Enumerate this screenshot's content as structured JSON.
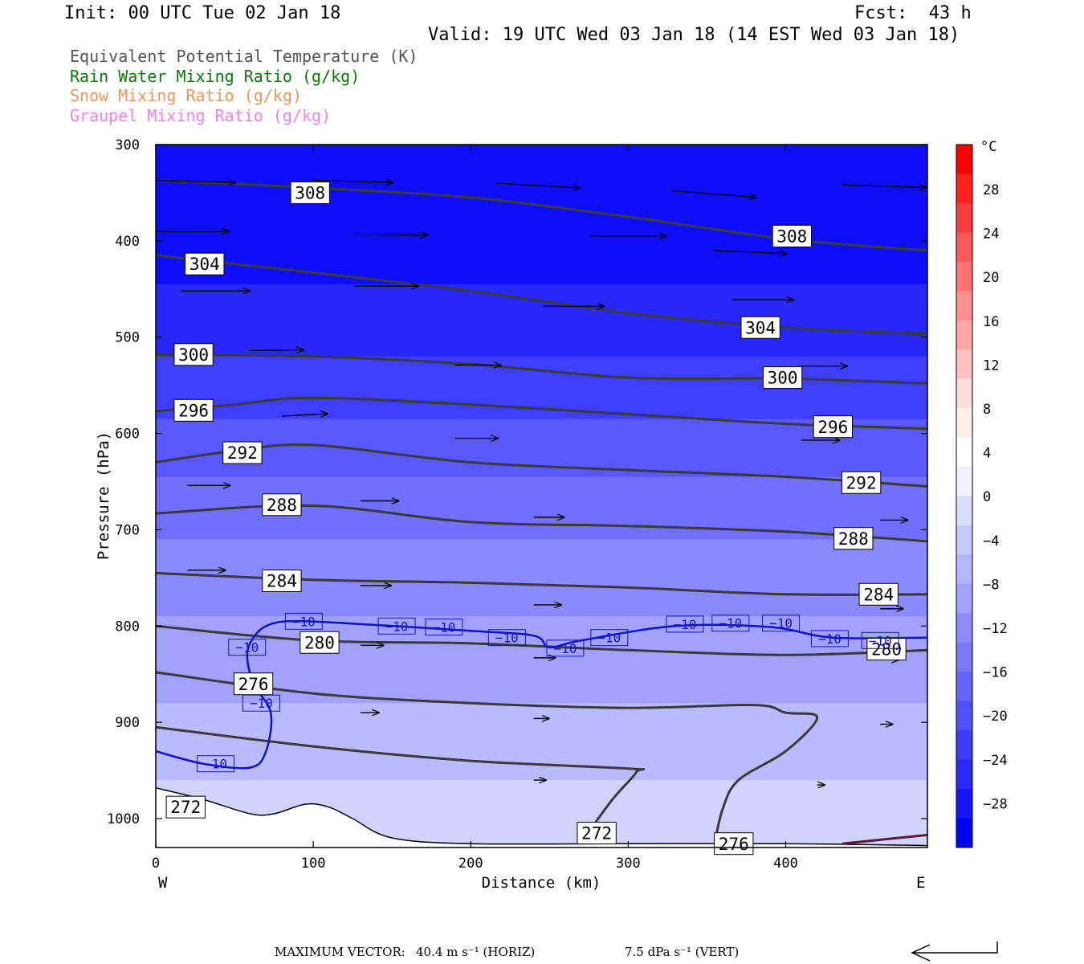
{
  "header": {
    "init": "Init: 00 UTC Tue 02 Jan 18",
    "fcst": "Fcst:  43 h",
    "valid": "Valid: 19 UTC Wed 03 Jan 18 (14 EST Wed 03 Jan 18)"
  },
  "fields": [
    {
      "label": "Equivalent Potential Temperature (K)",
      "color": "#555555"
    },
    {
      "label": "Rain Water Mixing Ratio (g/kg)",
      "color": "#0a7a0a"
    },
    {
      "label": "Snow Mixing Ratio (g/kg)",
      "color": "#f0955a"
    },
    {
      "label": "Graupel Mixing Ratio (g/kg)",
      "color": "#ee82ee"
    }
  ],
  "footer": {
    "max_vector_label": "MAXIMUM VECTOR:",
    "horiz": "40.4 m s⁻¹ (HORIZ)",
    "vert": "7.5 dPa s⁻¹ (VERT)"
  },
  "chart_data": {
    "type": "cross-section",
    "xlabel": "Distance (km)",
    "ylabel": "Pressure (hPa)",
    "xlim": [
      0,
      490
    ],
    "ylim": [
      300,
      1030
    ],
    "y_scale": "linear",
    "x_ticks": [
      0,
      100,
      200,
      300,
      400
    ],
    "y_ticks": [
      300,
      400,
      500,
      600,
      700,
      800,
      900,
      1000
    ],
    "x_end_labels": {
      "left": "W",
      "right": "E"
    },
    "colorbar": {
      "unit": "°C",
      "labels": [
        "28",
        "24",
        "20",
        "16",
        "12",
        "8",
        "4",
        "0",
        "-4",
        "-8",
        "-12",
        "-16",
        "-20",
        "-24",
        "-28"
      ],
      "colors": [
        "#ff0000",
        "#ff2020",
        "#ff3c3c",
        "#ff5a5a",
        "#ff7474",
        "#ff8e8e",
        "#ffa8a8",
        "#ffc2c2",
        "#ffdcdc",
        "#fff0f0",
        "#ffffff",
        "#f0f0ff",
        "#dcdcff",
        "#c8c8ff",
        "#b4b4ff",
        "#a0a0ff",
        "#8c8cff",
        "#7878ff",
        "#6464ff",
        "#5050ff",
        "#3c3cff",
        "#2828ff",
        "#1414ff",
        "#0000ff"
      ]
    },
    "temperature_fill_bands": [
      {
        "p_top": 300,
        "p_bot": 445,
        "color": "#0d0dfa"
      },
      {
        "p_top": 445,
        "p_bot": 520,
        "color": "#2828fa"
      },
      {
        "p_top": 520,
        "p_bot": 585,
        "color": "#3e3efb"
      },
      {
        "p_top": 585,
        "p_bot": 645,
        "color": "#5858fc"
      },
      {
        "p_top": 645,
        "p_bot": 710,
        "color": "#7070fc"
      },
      {
        "p_top": 710,
        "p_bot": 790,
        "color": "#8a8afd"
      },
      {
        "p_top": 790,
        "p_bot": 880,
        "color": "#a2a2fe"
      },
      {
        "p_top": 880,
        "p_bot": 960,
        "color": "#babafe"
      },
      {
        "p_top": 960,
        "p_bot": 1030,
        "color": "#d2d2fe"
      }
    ],
    "theta_e_contours": [
      {
        "label": "308",
        "points": [
          [
            0,
            337
          ],
          [
            100,
            345
          ],
          [
            200,
            355
          ],
          [
            300,
            375
          ],
          [
            400,
            398
          ],
          [
            490,
            410
          ]
        ],
        "label_at": [
          [
            98,
            350
          ],
          [
            404,
            395
          ]
        ]
      },
      {
        "label": "304",
        "points": [
          [
            0,
            415
          ],
          [
            100,
            433
          ],
          [
            200,
            452
          ],
          [
            300,
            475
          ],
          [
            400,
            490
          ],
          [
            490,
            497
          ]
        ],
        "label_at": [
          [
            31,
            424
          ],
          [
            384,
            490
          ]
        ]
      },
      {
        "label": "300",
        "points": [
          [
            0,
            518
          ],
          [
            100,
            520
          ],
          [
            200,
            528
          ],
          [
            300,
            542
          ],
          [
            400,
            543
          ],
          [
            490,
            548
          ]
        ],
        "label_at": [
          [
            24,
            518
          ],
          [
            398,
            542
          ]
        ]
      },
      {
        "label": "296",
        "points": [
          [
            0,
            577
          ],
          [
            50,
            570
          ],
          [
            100,
            563
          ],
          [
            200,
            570
          ],
          [
            300,
            580
          ],
          [
            400,
            590
          ],
          [
            490,
            595
          ]
        ],
        "label_at": [
          [
            24,
            576
          ],
          [
            430,
            593
          ]
        ]
      },
      {
        "label": "292",
        "points": [
          [
            0,
            630
          ],
          [
            50,
            618
          ],
          [
            100,
            612
          ],
          [
            200,
            630
          ],
          [
            300,
            638
          ],
          [
            400,
            645
          ],
          [
            490,
            655
          ]
        ],
        "label_at": [
          [
            55,
            620
          ],
          [
            448,
            651
          ]
        ]
      },
      {
        "label": "288",
        "points": [
          [
            0,
            683
          ],
          [
            100,
            675
          ],
          [
            200,
            692
          ],
          [
            300,
            696
          ],
          [
            400,
            702
          ],
          [
            490,
            712
          ]
        ],
        "label_at": [
          [
            80,
            674
          ],
          [
            443,
            709
          ]
        ]
      },
      {
        "label": "284",
        "points": [
          [
            0,
            745
          ],
          [
            100,
            752
          ],
          [
            200,
            755
          ],
          [
            300,
            760
          ],
          [
            400,
            767
          ],
          [
            490,
            767
          ]
        ],
        "label_at": [
          [
            80,
            753
          ],
          [
            459,
            767
          ]
        ]
      },
      {
        "label": "280",
        "points": [
          [
            0,
            800
          ],
          [
            100,
            815
          ],
          [
            200,
            818
          ],
          [
            300,
            825
          ],
          [
            400,
            830
          ],
          [
            490,
            825
          ]
        ],
        "label_at": [
          [
            104,
            817
          ],
          [
            464,
            824
          ]
        ]
      },
      {
        "label": "276",
        "points": [
          [
            0,
            848
          ],
          [
            100,
            870
          ],
          [
            200,
            880
          ],
          [
            300,
            885
          ],
          [
            380,
            882
          ],
          [
            400,
            890
          ],
          [
            420,
            895
          ],
          [
            400,
            930
          ],
          [
            370,
            960
          ],
          [
            360,
            990
          ],
          [
            355,
            1025
          ]
        ],
        "label_at": [
          [
            62,
            860
          ],
          [
            367,
            1026
          ]
        ]
      },
      {
        "label": "272",
        "points": [
          [
            0,
            905
          ],
          [
            100,
            925
          ],
          [
            200,
            940
          ],
          [
            300,
            948
          ],
          [
            305,
            952
          ],
          [
            290,
            980
          ],
          [
            270,
            1025
          ]
        ],
        "label_at": [
          [
            19,
            988
          ],
          [
            280,
            1015
          ]
        ]
      }
    ],
    "temperature_contour_minus10": {
      "label": "-10",
      "points": [
        [
          0,
          930
        ],
        [
          30,
          943
        ],
        [
          60,
          947
        ],
        [
          70,
          930
        ],
        [
          73,
          890
        ],
        [
          62,
          860
        ],
        [
          58,
          830
        ],
        [
          62,
          812
        ],
        [
          70,
          800
        ],
        [
          85,
          795
        ],
        [
          120,
          797
        ],
        [
          200,
          805
        ],
        [
          240,
          810
        ],
        [
          250,
          822
        ],
        [
          270,
          815
        ],
        [
          330,
          800
        ],
        [
          390,
          801
        ],
        [
          430,
          812
        ],
        [
          490,
          812
        ]
      ],
      "label_at": [
        [
          38,
          943
        ],
        [
          58,
          822
        ],
        [
          67,
          880
        ],
        [
          94,
          795
        ],
        [
          153,
          800
        ],
        [
          183,
          801
        ],
        [
          223,
          812
        ],
        [
          260,
          823
        ],
        [
          288,
          812
        ],
        [
          336,
          798
        ],
        [
          365,
          797
        ],
        [
          397,
          797
        ],
        [
          428,
          813
        ],
        [
          460,
          815
        ]
      ]
    },
    "terrain_pressure": [
      [
        0,
        968
      ],
      [
        30,
        980
      ],
      [
        60,
        995
      ],
      [
        75,
        995
      ],
      [
        95,
        985
      ],
      [
        110,
        988
      ],
      [
        125,
        1000
      ],
      [
        150,
        1020
      ],
      [
        200,
        1026
      ],
      [
        300,
        1026
      ],
      [
        400,
        1026
      ],
      [
        490,
        1028
      ]
    ],
    "graupel_contour": [
      [
        436,
        1026
      ],
      [
        490,
        1017
      ]
    ],
    "wind_vectors": [
      {
        "x": 0,
        "p": 337,
        "u": 52,
        "w": 3
      },
      {
        "x": 100,
        "p": 337,
        "u": 52,
        "w": 3
      },
      {
        "x": 216,
        "p": 340,
        "u": 55,
        "w": 6
      },
      {
        "x": 328,
        "p": 348,
        "u": 55,
        "w": 8
      },
      {
        "x": 436,
        "p": 342,
        "u": 55,
        "w": 3
      },
      {
        "x": 490,
        "p": 345,
        "u": 52,
        "w": 3
      },
      {
        "x": 0,
        "p": 390,
        "u": 48,
        "w": 0
      },
      {
        "x": 126,
        "p": 393,
        "u": 48,
        "w": 1
      },
      {
        "x": 276,
        "p": 395,
        "u": 50,
        "w": 0
      },
      {
        "x": 354,
        "p": 410,
        "u": 48,
        "w": 4
      },
      {
        "x": 490,
        "p": 403,
        "u": 48,
        "w": 2
      },
      {
        "x": 16,
        "p": 452,
        "u": 45,
        "w": 0
      },
      {
        "x": 126,
        "p": 447,
        "u": 42,
        "w": 0
      },
      {
        "x": 246,
        "p": 468,
        "u": 40,
        "w": 0
      },
      {
        "x": 366,
        "p": 461,
        "u": 40,
        "w": 0
      },
      {
        "x": 490,
        "p": 460,
        "u": 38,
        "w": 0
      },
      {
        "x": 60,
        "p": 514,
        "u": 35,
        "w": -1
      },
      {
        "x": 190,
        "p": 529,
        "u": 30,
        "w": 0
      },
      {
        "x": 410,
        "p": 530,
        "u": 30,
        "w": 0
      },
      {
        "x": 80,
        "p": 582,
        "u": 30,
        "w": -3
      },
      {
        "x": 190,
        "p": 605,
        "u": 28,
        "w": 0
      },
      {
        "x": 410,
        "p": 607,
        "u": 25,
        "w": 0
      },
      {
        "x": 20,
        "p": 654,
        "u": 28,
        "w": 0
      },
      {
        "x": 130,
        "p": 670,
        "u": 25,
        "w": 0
      },
      {
        "x": 240,
        "p": 687,
        "u": 20,
        "w": 0
      },
      {
        "x": 460,
        "p": 690,
        "u": 18,
        "w": 0
      },
      {
        "x": 20,
        "p": 742,
        "u": 25,
        "w": 0
      },
      {
        "x": 130,
        "p": 758,
        "u": 20,
        "w": 0
      },
      {
        "x": 240,
        "p": 778,
        "u": 18,
        "w": 0
      },
      {
        "x": 460,
        "p": 782,
        "u": 15,
        "w": 0
      },
      {
        "x": 130,
        "p": 820,
        "u": 15,
        "w": 0
      },
      {
        "x": 240,
        "p": 833,
        "u": 14,
        "w": 0
      },
      {
        "x": 460,
        "p": 835,
        "u": 12,
        "w": 0
      },
      {
        "x": 130,
        "p": 890,
        "u": 12,
        "w": 0
      },
      {
        "x": 240,
        "p": 896,
        "u": 10,
        "w": 0
      },
      {
        "x": 460,
        "p": 902,
        "u": 8,
        "w": 0
      },
      {
        "x": 240,
        "p": 960,
        "u": 8,
        "w": 0
      },
      {
        "x": 420,
        "p": 965,
        "u": 5,
        "w": 0
      }
    ]
  }
}
